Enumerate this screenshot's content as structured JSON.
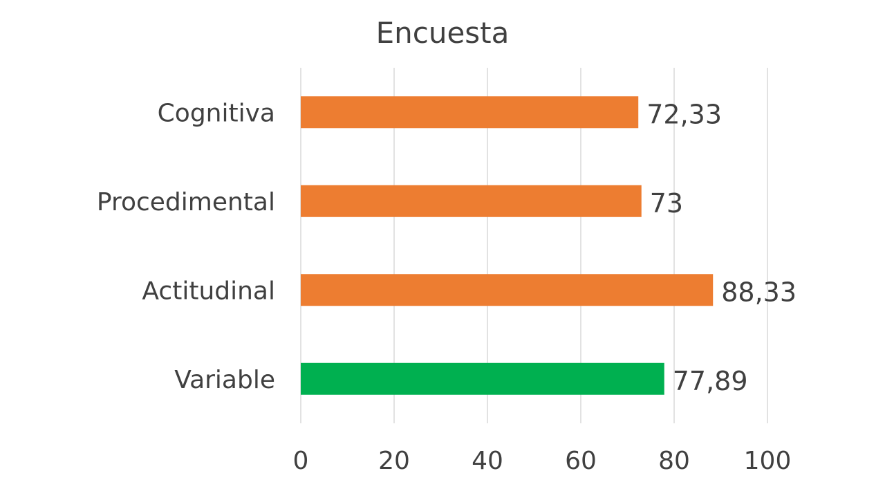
{
  "chart_data": {
    "type": "bar",
    "orientation": "horizontal",
    "title": "Encuesta",
    "categories": [
      "Cognitiva",
      "Procedimental",
      "Actitudinal",
      "Variable"
    ],
    "values": [
      72.33,
      73,
      88.33,
      77.89
    ],
    "data_labels": [
      "72,33",
      "73",
      "88,33",
      "77,89"
    ],
    "bar_colors": [
      "#ED7D31",
      "#ED7D31",
      "#ED7D31",
      "#00B050"
    ],
    "xlim": [
      0,
      100
    ],
    "x_ticks": [
      0,
      20,
      40,
      60,
      80,
      100
    ],
    "x_tick_labels": [
      "0",
      "20",
      "40",
      "60",
      "80",
      "100"
    ],
    "grid": true,
    "legend": "none",
    "xlabel": "",
    "ylabel": ""
  }
}
